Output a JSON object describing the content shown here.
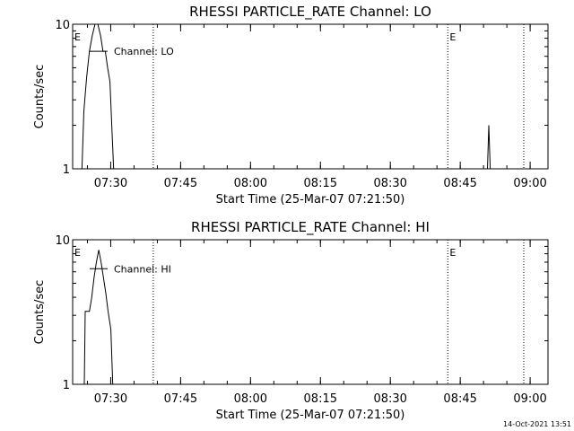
{
  "footer": {
    "timestamp": "14-Oct-2021 13:51"
  },
  "chart_data": [
    {
      "type": "line",
      "title": "RHESSI PARTICLE_RATE Channel: LO",
      "xlabel": "Start Time (25-Mar-07 07:21:50)",
      "ylabel": "Counts/sec",
      "y_scale": "log",
      "ylim": [
        1,
        10
      ],
      "y_ticks": [
        {
          "value": 1,
          "label": "1"
        },
        {
          "value": 10,
          "label": "10"
        }
      ],
      "x_ticks": [
        {
          "minutes": 8.17,
          "label": "07:30"
        },
        {
          "minutes": 23.17,
          "label": "07:45"
        },
        {
          "minutes": 38.17,
          "label": "08:00"
        },
        {
          "minutes": 53.17,
          "label": "08:15"
        },
        {
          "minutes": 68.17,
          "label": "08:30"
        },
        {
          "minutes": 83.17,
          "label": "08:45"
        },
        {
          "minutes": 98.17,
          "label": "09:00"
        }
      ],
      "vertical_markers": [
        {
          "minutes": 17.3,
          "label": ""
        },
        {
          "minutes": 80.5,
          "label": ""
        },
        {
          "minutes": 96.8,
          "label": ""
        }
      ],
      "annotations": [
        {
          "minutes": 0.2,
          "label": "E"
        },
        {
          "minutes": 80.7,
          "label": "E"
        }
      ],
      "legend": {
        "label": "Channel: LO",
        "value": 6.5
      },
      "series": [
        {
          "name": "Channel: LO",
          "x": [
            2.0,
            2.4,
            3.0,
            3.6,
            4.2,
            4.8,
            5.4,
            6.0,
            6.5,
            7.0,
            7.5,
            8.0,
            8.4,
            8.8,
            89.0,
            89.3,
            89.6
          ],
          "y": [
            1,
            2.5,
            4.3,
            6.5,
            8.3,
            10,
            10,
            8.3,
            6.5,
            6.5,
            5.0,
            4.0,
            2.0,
            1,
            1,
            2.0,
            1
          ]
        }
      ]
    },
    {
      "type": "line",
      "title": "RHESSI PARTICLE_RATE Channel: HI",
      "xlabel": "Start Time (25-Mar-07 07:21:50)",
      "ylabel": "Counts/sec",
      "y_scale": "log",
      "ylim": [
        1,
        10
      ],
      "y_ticks": [
        {
          "value": 1,
          "label": "1"
        },
        {
          "value": 10,
          "label": "10"
        }
      ],
      "x_ticks": [
        {
          "minutes": 8.17,
          "label": "07:30"
        },
        {
          "minutes": 23.17,
          "label": "07:45"
        },
        {
          "minutes": 38.17,
          "label": "08:00"
        },
        {
          "minutes": 53.17,
          "label": "08:15"
        },
        {
          "minutes": 68.17,
          "label": "08:30"
        },
        {
          "minutes": 83.17,
          "label": "08:45"
        },
        {
          "minutes": 98.17,
          "label": "09:00"
        }
      ],
      "vertical_markers": [
        {
          "minutes": 17.3,
          "label": ""
        },
        {
          "minutes": 80.5,
          "label": ""
        },
        {
          "minutes": 96.8,
          "label": ""
        }
      ],
      "annotations": [
        {
          "minutes": 0.2,
          "label": "E"
        },
        {
          "minutes": 80.7,
          "label": "E"
        }
      ],
      "legend": {
        "label": "Channel: HI",
        "value": 6.3
      },
      "series": [
        {
          "name": "Channel: HI",
          "x": [
            2.5,
            2.7,
            3.6,
            4.1,
            4.6,
            5.1,
            5.6,
            6.1,
            6.6,
            7.1,
            7.6,
            8.2,
            8.6
          ],
          "y": [
            1,
            3.2,
            3.2,
            4.0,
            5.5,
            7.0,
            8.5,
            7.0,
            5.5,
            4.3,
            3.2,
            2.4,
            1
          ]
        }
      ]
    }
  ]
}
